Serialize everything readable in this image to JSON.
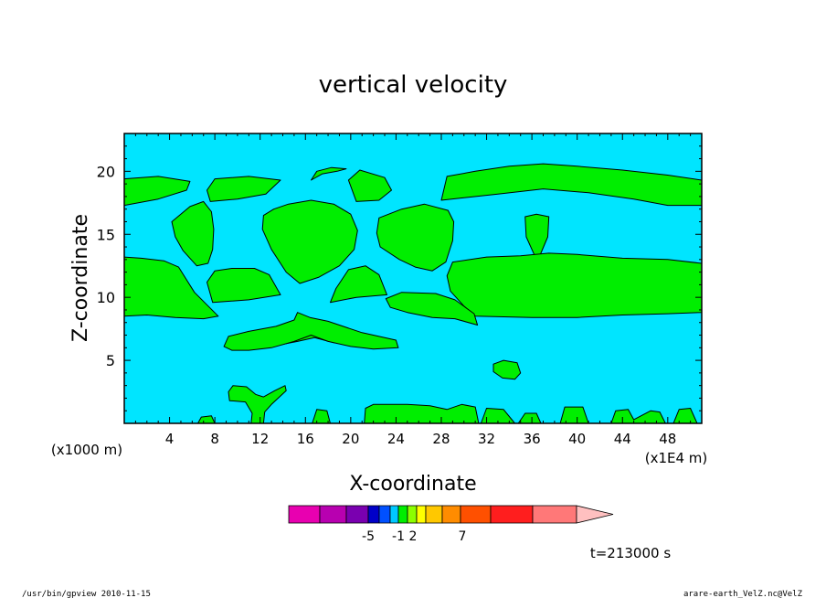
{
  "chart_data": {
    "type": "heatmap",
    "title": "vertical velocity",
    "xlabel": "X-coordinate",
    "ylabel": "Z-coordinate",
    "x_unit": "(x1E4 m)",
    "y_unit": "(x1000 m)",
    "xlim": [
      0,
      51
    ],
    "ylim": [
      0,
      23
    ],
    "x_ticks": [
      4,
      8,
      12,
      16,
      20,
      24,
      28,
      32,
      36,
      40,
      44,
      48
    ],
    "y_ticks": [
      5,
      10,
      15,
      20
    ],
    "background_color": "#00e5ff",
    "regions": [
      {
        "name": "upper band left",
        "color": "#00ee00",
        "points": [
          [
            0,
            17.3
          ],
          [
            3,
            17.8
          ],
          [
            5.5,
            18.5
          ],
          [
            5.8,
            19.2
          ],
          [
            3,
            19.6
          ],
          [
            0,
            19.4
          ]
        ]
      },
      {
        "name": "upper band right",
        "color": "#00ee00",
        "points": [
          [
            28,
            17.7
          ],
          [
            33,
            18.2
          ],
          [
            37,
            18.6
          ],
          [
            41,
            18.3
          ],
          [
            45,
            17.8
          ],
          [
            48,
            17.3
          ],
          [
            51,
            17.3
          ],
          [
            51,
            19.3
          ],
          [
            48,
            19.7
          ],
          [
            44,
            20.1
          ],
          [
            40,
            20.4
          ],
          [
            37,
            20.6
          ],
          [
            34,
            20.4
          ],
          [
            31,
            20.0
          ],
          [
            28.5,
            19.6
          ]
        ]
      },
      {
        "name": "upper cap 1",
        "color": "#00ee00",
        "points": [
          [
            7.6,
            17.6
          ],
          [
            10,
            17.8
          ],
          [
            12.5,
            18.2
          ],
          [
            13.8,
            19.3
          ],
          [
            11,
            19.6
          ],
          [
            8,
            19.4
          ],
          [
            7.3,
            18.5
          ]
        ]
      },
      {
        "name": "upper cap 2",
        "color": "#00ee00",
        "points": [
          [
            20.5,
            17.6
          ],
          [
            22.5,
            17.7
          ],
          [
            23.6,
            18.5
          ],
          [
            23,
            19.5
          ],
          [
            20.8,
            20.1
          ],
          [
            19.8,
            19.3
          ]
        ]
      },
      {
        "name": "upper cap 3",
        "color": "#00ee00",
        "points": [
          [
            16.5,
            19.3
          ],
          [
            17.5,
            19.8
          ],
          [
            18.8,
            20.0
          ],
          [
            19.6,
            20.2
          ],
          [
            18.3,
            20.3
          ],
          [
            17,
            20.0
          ]
        ]
      },
      {
        "name": "mid cell left",
        "color": "#00ee00",
        "points": [
          [
            5.8,
            17.2
          ],
          [
            7,
            17.6
          ],
          [
            7.7,
            16.8
          ],
          [
            7.9,
            15.4
          ],
          [
            7.8,
            13.8
          ],
          [
            7.4,
            12.7
          ],
          [
            6.4,
            12.5
          ],
          [
            5.2,
            13.7
          ],
          [
            4.5,
            14.8
          ],
          [
            4.2,
            16.0
          ]
        ]
      },
      {
        "name": "mid cell large",
        "color": "#00ee00",
        "points": [
          [
            14.5,
            17.4
          ],
          [
            16.5,
            17.7
          ],
          [
            18.5,
            17.4
          ],
          [
            20,
            16.6
          ],
          [
            20.6,
            15.3
          ],
          [
            20.3,
            13.8
          ],
          [
            19,
            12.5
          ],
          [
            17.2,
            11.6
          ],
          [
            15.5,
            11.1
          ],
          [
            14.3,
            12.0
          ],
          [
            13,
            13.8
          ],
          [
            12.2,
            15.4
          ],
          [
            12.3,
            16.5
          ],
          [
            13.2,
            17.0
          ]
        ]
      },
      {
        "name": "mid cell capsule",
        "color": "#00ee00",
        "points": [
          [
            22.5,
            16.3
          ],
          [
            24.5,
            17.0
          ],
          [
            26.5,
            17.4
          ],
          [
            28.6,
            16.9
          ],
          [
            29.1,
            16.0
          ],
          [
            29,
            14.5
          ],
          [
            28.4,
            12.8
          ],
          [
            27.2,
            12.1
          ],
          [
            25.7,
            12.4
          ],
          [
            24.3,
            13.0
          ],
          [
            22.6,
            14.0
          ],
          [
            22.3,
            15.1
          ]
        ]
      },
      {
        "name": "mid cell right",
        "color": "#00ee00",
        "points": [
          [
            35.4,
            16.4
          ],
          [
            36.4,
            16.6
          ],
          [
            37.5,
            16.4
          ],
          [
            37.4,
            14.8
          ],
          [
            36.7,
            13.3
          ],
          [
            36.2,
            12.2
          ],
          [
            36.2,
            13.4
          ],
          [
            35.5,
            14.8
          ]
        ]
      },
      {
        "name": "left shelf",
        "color": "#00ee00",
        "points": [
          [
            0,
            8.5
          ],
          [
            2,
            8.6
          ],
          [
            4.5,
            8.4
          ],
          [
            7,
            8.3
          ],
          [
            8.3,
            8.5
          ],
          [
            6.2,
            10.4
          ],
          [
            4.8,
            12.4
          ],
          [
            3.5,
            12.9
          ],
          [
            1.5,
            13.1
          ],
          [
            0,
            13.2
          ]
        ]
      },
      {
        "name": "right shelf",
        "color": "#00ee00",
        "points": [
          [
            31,
            8.5
          ],
          [
            36,
            8.4
          ],
          [
            40,
            8.4
          ],
          [
            44,
            8.6
          ],
          [
            48,
            8.7
          ],
          [
            51,
            8.8
          ],
          [
            51,
            12.7
          ],
          [
            48,
            13.0
          ],
          [
            44,
            13.1
          ],
          [
            40,
            13.4
          ],
          [
            37.5,
            13.5
          ],
          [
            35,
            13.3
          ],
          [
            32,
            13.2
          ],
          [
            29,
            12.8
          ],
          [
            28.5,
            11.7
          ],
          [
            28.8,
            10.5
          ],
          [
            30,
            9.3
          ]
        ]
      },
      {
        "name": "inner wedge 1",
        "color": "#00ee00",
        "points": [
          [
            7.8,
            9.6
          ],
          [
            11,
            9.8
          ],
          [
            13.8,
            10.2
          ],
          [
            12.8,
            11.8
          ],
          [
            11.5,
            12.3
          ],
          [
            9.5,
            12.3
          ],
          [
            8,
            12.1
          ],
          [
            7.3,
            11.2
          ]
        ]
      },
      {
        "name": "inner wedge 2",
        "color": "#00ee00",
        "points": [
          [
            18.2,
            9.6
          ],
          [
            20.5,
            10.0
          ],
          [
            23.2,
            10.2
          ],
          [
            22.5,
            11.8
          ],
          [
            21.3,
            12.5
          ],
          [
            19.8,
            12.2
          ],
          [
            18.7,
            10.7
          ]
        ]
      },
      {
        "name": "drop feature",
        "color": "#00ee00",
        "points": [
          [
            23.5,
            9.2
          ],
          [
            25,
            8.8
          ],
          [
            27.2,
            8.4
          ],
          [
            29.2,
            8.3
          ],
          [
            31.2,
            7.8
          ],
          [
            30.9,
            8.7
          ],
          [
            29.2,
            9.8
          ],
          [
            27.5,
            10.3
          ],
          [
            24.5,
            10.4
          ],
          [
            23.1,
            9.9
          ]
        ]
      },
      {
        "name": "lower ribbon",
        "color": "#00ee00",
        "points": [
          [
            9,
            6.2
          ],
          [
            11,
            6.3
          ],
          [
            12.5,
            6.5
          ],
          [
            14.5,
            6.9
          ],
          [
            15.5,
            7.2
          ],
          [
            17,
            7.4
          ],
          [
            20,
            7.0
          ],
          [
            22.5,
            6.6
          ],
          [
            24,
            6.2
          ],
          [
            22.5,
            6.3
          ],
          [
            20.5,
            6.4
          ],
          [
            18.5,
            6.4
          ],
          [
            16.8,
            6.8
          ],
          [
            15.3,
            6.5
          ],
          [
            13,
            6.1
          ],
          [
            11,
            6.0
          ],
          [
            9.5,
            6.1
          ]
        ]
      },
      {
        "name": "lower ribbon body",
        "color": "#00ee00",
        "points": [
          [
            8.8,
            6.1
          ],
          [
            9.2,
            6.9
          ],
          [
            11,
            7.3
          ],
          [
            13.4,
            7.7
          ],
          [
            15,
            8.2
          ],
          [
            15.3,
            8.8
          ],
          [
            16.4,
            8.4
          ],
          [
            18,
            8.1
          ],
          [
            21,
            7.2
          ],
          [
            24,
            6.6
          ],
          [
            24.2,
            6.0
          ],
          [
            22,
            5.9
          ],
          [
            20,
            6.1
          ],
          [
            18,
            6.5
          ],
          [
            16.5,
            7.0
          ],
          [
            15,
            6.5
          ],
          [
            13,
            6.0
          ],
          [
            11,
            5.8
          ],
          [
            9.5,
            5.8
          ]
        ]
      },
      {
        "name": "small blob",
        "color": "#00ee00",
        "points": [
          [
            32.6,
            4.1
          ],
          [
            33.4,
            3.6
          ],
          [
            34.5,
            3.5
          ],
          [
            35,
            4.0
          ],
          [
            34.7,
            4.8
          ],
          [
            33.5,
            5.0
          ],
          [
            32.6,
            4.7
          ]
        ]
      },
      {
        "name": "x feature",
        "color": "#00ee00",
        "points": [
          [
            9.3,
            1.8
          ],
          [
            10.7,
            1.7
          ],
          [
            11.3,
            0.8
          ],
          [
            11.2,
            0.0
          ],
          [
            12.3,
            0.0
          ],
          [
            12.4,
            0.9
          ],
          [
            13,
            1.5
          ],
          [
            14.3,
            2.6
          ],
          [
            14.2,
            3.0
          ],
          [
            13.3,
            2.6
          ],
          [
            12.3,
            2.1
          ],
          [
            11.6,
            2.3
          ],
          [
            10.8,
            2.9
          ],
          [
            9.6,
            3.0
          ],
          [
            9.2,
            2.5
          ]
        ]
      },
      {
        "name": "ground 1",
        "color": "#00ee00",
        "points": [
          [
            6.5,
            0
          ],
          [
            6.8,
            0.5
          ],
          [
            7.7,
            0.6
          ],
          [
            8,
            0
          ]
        ]
      },
      {
        "name": "ground 2",
        "color": "#00ee00",
        "points": [
          [
            16.6,
            0
          ],
          [
            17,
            1.1
          ],
          [
            17.9,
            1.0
          ],
          [
            18.2,
            0
          ]
        ]
      },
      {
        "name": "ground 3",
        "color": "#00ee00",
        "points": [
          [
            21.2,
            0
          ],
          [
            21.3,
            1.2
          ],
          [
            22,
            1.5
          ],
          [
            25,
            1.5
          ],
          [
            27,
            1.4
          ],
          [
            28.5,
            1.1
          ],
          [
            29.8,
            1.5
          ],
          [
            31,
            1.3
          ],
          [
            31.3,
            0
          ]
        ]
      },
      {
        "name": "ground 4",
        "color": "#00ee00",
        "points": [
          [
            31.5,
            0
          ],
          [
            32,
            1.2
          ],
          [
            33.5,
            1.1
          ],
          [
            34.5,
            0
          ]
        ]
      },
      {
        "name": "ground 5",
        "color": "#00ee00",
        "points": [
          [
            34.8,
            0
          ],
          [
            35.4,
            0.8
          ],
          [
            36.4,
            0.8
          ],
          [
            36.8,
            0
          ]
        ]
      },
      {
        "name": "ground 6",
        "color": "#00ee00",
        "points": [
          [
            38.5,
            0
          ],
          [
            38.9,
            1.3
          ],
          [
            40.5,
            1.3
          ],
          [
            41,
            0
          ]
        ]
      },
      {
        "name": "ground 7",
        "color": "#00ee00",
        "points": [
          [
            43,
            0
          ],
          [
            43.4,
            1.0
          ],
          [
            44.5,
            1.1
          ],
          [
            45,
            0.3
          ],
          [
            46.5,
            1.0
          ],
          [
            47.3,
            0.9
          ],
          [
            47.8,
            0
          ]
        ]
      },
      {
        "name": "ground 8",
        "color": "#00ee00",
        "points": [
          [
            48.5,
            0
          ],
          [
            49,
            1.1
          ],
          [
            50,
            1.2
          ],
          [
            50.6,
            0
          ]
        ]
      }
    ],
    "colorbar": {
      "colors": [
        "#e800b0",
        "#b800b0",
        "#7a00b0",
        "#0000c8",
        "#0050ff",
        "#00c8ff",
        "#00ee00",
        "#8cff00",
        "#ffff00",
        "#ffc800",
        "#ff8c00",
        "#ff5000",
        "#ff1e1e",
        "#ff7878",
        "#ffc0c0"
      ],
      "labels": [
        "-5",
        "-1",
        "2",
        "7"
      ]
    }
  },
  "time_label": "t=213000 s",
  "footer": {
    "left": "/usr/bin/gpview   2010-11-15",
    "right": "arare-earth_VelZ.nc@VelZ"
  }
}
